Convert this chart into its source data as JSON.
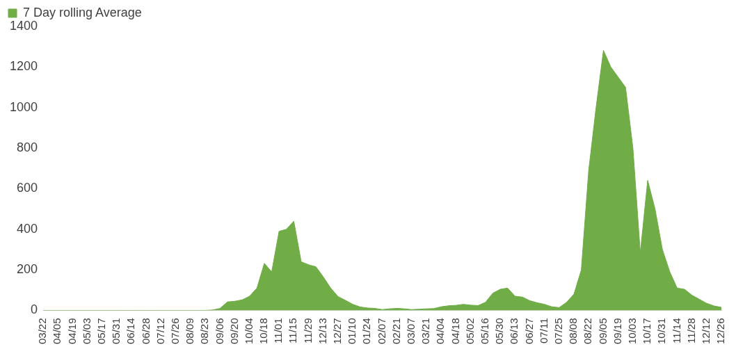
{
  "chart_data": {
    "type": "area",
    "categories": [
      "03/22",
      null,
      "04/05",
      null,
      "04/19",
      null,
      "05/03",
      null,
      "05/17",
      null,
      "05/31",
      null,
      "06/14",
      null,
      "06/28",
      null,
      "07/12",
      null,
      "07/26",
      null,
      "08/09",
      null,
      "08/23",
      null,
      "09/06",
      null,
      "09/20",
      null,
      "10/04",
      null,
      "10/18",
      null,
      "11/01",
      null,
      "11/15",
      null,
      "11/29",
      null,
      "12/13",
      null,
      "12/27",
      null,
      "01/10",
      null,
      "01/24",
      null,
      "02/07",
      null,
      "02/21",
      null,
      "03/07",
      null,
      "03/21",
      null,
      "04/04",
      null,
      "04/18",
      null,
      "05/02",
      null,
      "05/16",
      null,
      "05/30",
      null,
      "06/13",
      null,
      "06/27",
      null,
      "07/11",
      null,
      "07/25",
      null,
      "08/08",
      null,
      "08/22",
      null,
      "09/05",
      null,
      "09/19",
      null,
      "10/03",
      null,
      "10/17",
      null,
      "10/31",
      null,
      "11/14",
      null,
      "11/28",
      null,
      "12/12",
      null,
      "12/26"
    ],
    "series": [
      {
        "name": "7 Day rolling Average",
        "color": "#70ad47",
        "values": [
          0,
          0,
          0,
          0,
          0,
          0,
          0,
          0,
          0,
          0,
          0,
          0,
          0,
          0,
          0,
          0,
          0,
          0,
          0,
          0,
          0,
          0,
          0,
          2,
          10,
          42,
          45,
          52,
          70,
          110,
          232,
          190,
          390,
          400,
          440,
          240,
          225,
          215,
          165,
          110,
          68,
          50,
          30,
          17,
          12,
          10,
          4,
          8,
          10,
          8,
          4,
          6,
          8,
          9,
          18,
          23,
          25,
          30,
          26,
          24,
          40,
          85,
          104,
          110,
          70,
          66,
          48,
          38,
          30,
          18,
          14,
          40,
          80,
          200,
          690,
          1000,
          1282,
          1200,
          1150,
          1100,
          800,
          284,
          641,
          500,
          300,
          190,
          110,
          104,
          75,
          55,
          35,
          22,
          15
        ]
      }
    ],
    "ylim": [
      0,
      1400
    ],
    "yticks": [
      0,
      200,
      400,
      600,
      800,
      1000,
      1200,
      1400
    ],
    "grid": false,
    "legend": "top left"
  }
}
